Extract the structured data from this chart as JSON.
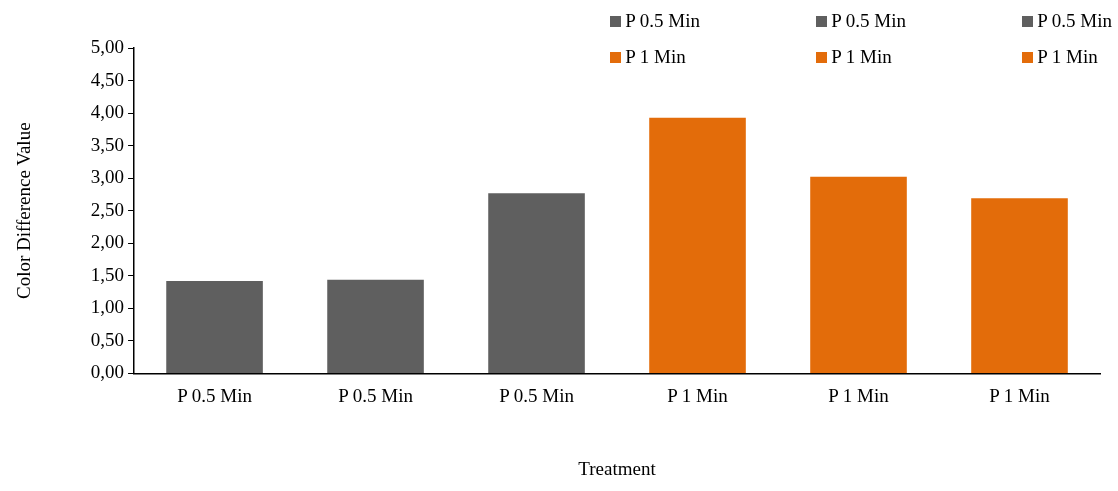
{
  "chart_data": {
    "type": "bar",
    "xlabel": "Treatment",
    "ylabel": "Color Difference Value",
    "categories": [
      "P 0.5 Min",
      "P 0.5 Min",
      "P 0.5 Min",
      "P 1 Min",
      "P 1 Min",
      "P 1 Min"
    ],
    "series": [
      {
        "name": "P 0.5 Min",
        "color": "#5f5f5f",
        "values": [
          1.42,
          null,
          null,
          null,
          null,
          null
        ]
      },
      {
        "name": "P 0.5 Min",
        "color": "#5f5f5f",
        "values": [
          null,
          1.44,
          null,
          null,
          null,
          null
        ]
      },
      {
        "name": "P 0.5 Min",
        "color": "#5f5f5f",
        "values": [
          null,
          null,
          2.77,
          null,
          null,
          null
        ]
      },
      {
        "name": "P 1 Min",
        "color": "#e36c0a",
        "values": [
          null,
          null,
          null,
          3.93,
          null,
          null
        ]
      },
      {
        "name": "P 1 Min",
        "color": "#e36c0a",
        "values": [
          null,
          null,
          null,
          null,
          3.02,
          null
        ]
      },
      {
        "name": "P 1 Min",
        "color": "#e36c0a",
        "values": [
          null,
          null,
          null,
          null,
          null,
          2.69
        ]
      }
    ],
    "ylim": [
      0,
      5
    ],
    "yticks": [
      {
        "value": 0,
        "label": "0,00"
      },
      {
        "value": 0.5,
        "label": "0,50"
      },
      {
        "value": 1,
        "label": "1,00"
      },
      {
        "value": 1.5,
        "label": "1,50"
      },
      {
        "value": 2,
        "label": "2,00"
      },
      {
        "value": 2.5,
        "label": "2,50"
      },
      {
        "value": 3,
        "label": "3,00"
      },
      {
        "value": 3.5,
        "label": "3,50"
      },
      {
        "value": 4,
        "label": "4,00"
      },
      {
        "value": 4.5,
        "label": "4,50"
      },
      {
        "value": 5,
        "label": "5,00"
      }
    ],
    "grid": false,
    "legend": "top right"
  }
}
